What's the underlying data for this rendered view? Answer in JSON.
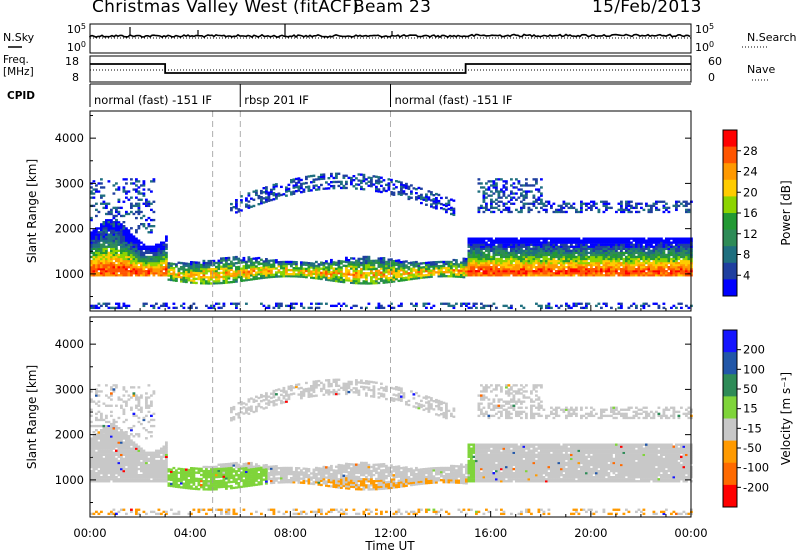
{
  "header": {
    "station": "Christmas Valley West (fitACF)",
    "beam": "Beam 23",
    "date": "15/Feb/2013"
  },
  "labels": {
    "nsky": "N.Sky",
    "nsearch": "N.Search",
    "freq_line1": "Freq.",
    "freq_line2": "[MHz]",
    "nave": "Nave",
    "cpid": "CPID",
    "xlabel": "Time UT",
    "ylabel": "Slant Range [km]",
    "power_label": "Power [dB]",
    "velocity_label": "Velocity [m s⁻¹]"
  },
  "noise_panel": {
    "y_ticks_left": [
      "10^5",
      "10^0"
    ],
    "y_ticks_right": [
      "10^5",
      "10^0"
    ]
  },
  "freq_panel": {
    "y_ticks_left": [
      "18",
      "8"
    ],
    "y_ticks_right": [
      "60",
      "0"
    ]
  },
  "cpid_segments": [
    {
      "label": "normal (fast) -151 IF",
      "start": 0,
      "end": 6
    },
    {
      "label": "rbsp 201 IF",
      "start": 6,
      "end": 12
    },
    {
      "label": "normal (fast) -151 IF",
      "start": 12,
      "end": 24
    }
  ],
  "colorbars": {
    "power": {
      "ticks": [
        "28",
        "24",
        "20",
        "16",
        "12",
        "8",
        "4"
      ],
      "colors": [
        "#ff0000",
        "#ff5500",
        "#ff9900",
        "#ffcc00",
        "#8cd400",
        "#229933",
        "#2e8b57",
        "#1f6f7f",
        "#1f3f9f",
        "#0000ff"
      ]
    },
    "velocity": {
      "ticks": [
        "200",
        "100",
        "50",
        "15",
        "-15",
        "-50",
        "-100",
        "-200"
      ],
      "colors": [
        "#1515ff",
        "#2257a8",
        "#2e8b57",
        "#7fd43a",
        "#c8c8c8",
        "#ff9a00",
        "#ff6a00",
        "#ff0000"
      ]
    }
  },
  "chart_data": {
    "type": "heatmap",
    "x_ticks": [
      "00:00",
      "04:00",
      "08:00",
      "12:00",
      "16:00",
      "20:00",
      "00:00"
    ],
    "xlim_hours": [
      0,
      24
    ],
    "ylim_km": [
      180,
      4600
    ],
    "y_ticks_km": [
      1000,
      2000,
      3000,
      4000
    ],
    "panels": [
      {
        "name": "Power",
        "units": "dB",
        "range": [
          0,
          30
        ]
      },
      {
        "name": "Velocity",
        "units": "m s-1",
        "range": [
          -250,
          250
        ]
      }
    ],
    "mode_changes_hours": [
      3,
      15
    ],
    "time_markers_hours": [
      6,
      12
    ]
  }
}
